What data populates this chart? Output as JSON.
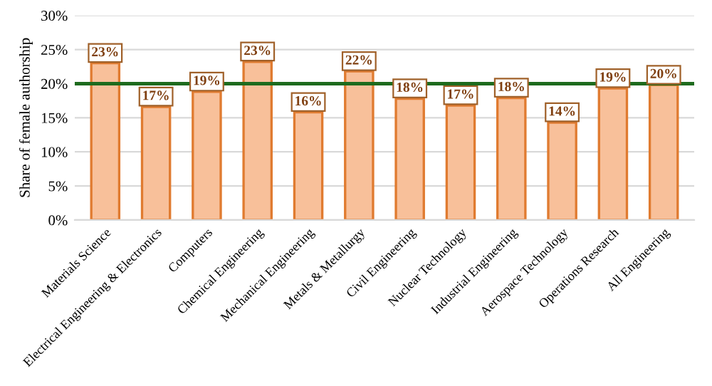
{
  "chart_data": {
    "type": "bar",
    "ylabel": "Share of female authorship",
    "categories": [
      "Materials Science",
      "Electrical Engineering & Electronics",
      "Computers",
      "Chemical Engineering",
      "Mechanical Engineering",
      "Metals & Metallurgy",
      "Civil Engineering",
      "Nuclear Technology",
      "Industrial Engineering",
      "Aerospace Technology",
      "Operations Research",
      "All Engineering"
    ],
    "values": [
      23.0,
      16.6,
      18.8,
      23.2,
      15.8,
      21.8,
      17.8,
      16.8,
      17.9,
      14.3,
      19.3,
      19.8
    ],
    "value_labels": [
      "23%",
      "17%",
      "19%",
      "23%",
      "16%",
      "22%",
      "18%",
      "17%",
      "18%",
      "14%",
      "19%",
      "20%"
    ],
    "color": "#f8c09a",
    "ylim": [
      0,
      30
    ],
    "yticks": [
      {
        "value": 0,
        "label": "0%"
      },
      {
        "value": 5,
        "label": "5%"
      },
      {
        "value": 10,
        "label": "10%"
      },
      {
        "value": 15,
        "label": "15%"
      },
      {
        "value": 20,
        "label": "20%"
      },
      {
        "value": 25,
        "label": "25%"
      },
      {
        "value": 30,
        "label": "30%"
      }
    ],
    "ref_lines": [
      {
        "axis": "y",
        "value": 20,
        "color": "#1e6b1e"
      }
    ],
    "grid": "y"
  }
}
